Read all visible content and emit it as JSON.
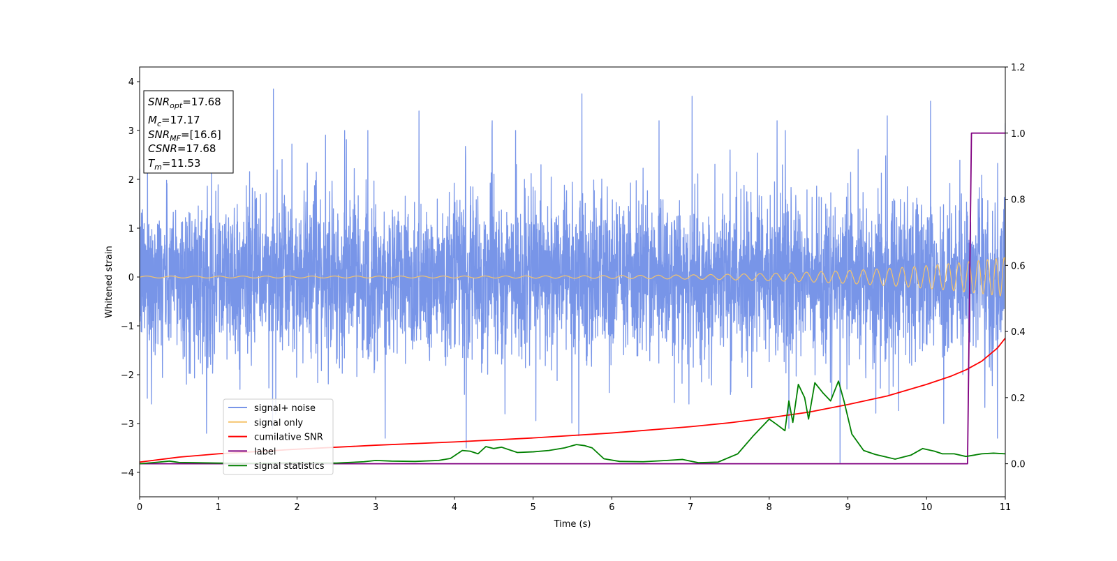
{
  "chart_data": {
    "type": "line",
    "xlabel": "Time (s)",
    "ylabel": "Whitened strain",
    "xlim": [
      0,
      11
    ],
    "ylim": [
      -4.5,
      4.3
    ],
    "y2lim": [
      -0.1,
      1.2
    ],
    "x_ticks": [
      0,
      1,
      2,
      3,
      4,
      5,
      6,
      7,
      8,
      9,
      10,
      11
    ],
    "y_ticks": [
      -4,
      -3,
      -2,
      -1,
      0,
      1,
      2,
      3,
      4
    ],
    "y2_ticks": [
      0.0,
      0.2,
      0.4,
      0.6,
      0.8,
      1.0,
      1.2
    ],
    "x_tick_labels": [
      "0",
      "1",
      "2",
      "3",
      "4",
      "5",
      "6",
      "7",
      "8",
      "9",
      "10",
      "11"
    ],
    "y_tick_labels": [
      "−4",
      "−3",
      "−2",
      "−1",
      "0",
      "1",
      "2",
      "3",
      "4"
    ],
    "y2_tick_labels": [
      "0.0",
      "0.2",
      "0.4",
      "0.6",
      "0.8",
      "1.0",
      "1.2"
    ],
    "grid": false,
    "legend_position": "lower-left",
    "annotation": {
      "lines": [
        {
          "base": "SNR",
          "sub": "opt",
          "value": "=17.68"
        },
        {
          "base": "M",
          "sub": "c",
          "value": "=17.17"
        },
        {
          "base": "SNR",
          "sub": "MF",
          "value": "=[16.6]"
        },
        {
          "base": "CSNR",
          "sub": "",
          "value": "=17.68"
        },
        {
          "base": "T",
          "sub": "m",
          "value": "=11.53"
        }
      ]
    },
    "series": [
      {
        "name": "signal+ noise",
        "color": "#7895e8",
        "axis": "left",
        "kind": "noise",
        "std": 0.8,
        "extremes": [
          [
            1.7,
            3.85
          ],
          [
            1.69,
            -3.1
          ],
          [
            5.62,
            3.75
          ],
          [
            5.58,
            -3.25
          ],
          [
            7.02,
            3.7
          ],
          [
            6.98,
            -2.6
          ],
          [
            3.55,
            3.4
          ],
          [
            3.12,
            -3.3
          ],
          [
            4.15,
            -3.5
          ],
          [
            10.05,
            3.6
          ],
          [
            8.9,
            -3.8
          ],
          [
            11.0,
            3.15
          ],
          [
            0.85,
            -3.2
          ],
          [
            0.1,
            2.9
          ],
          [
            0.15,
            -2.6
          ],
          [
            4.48,
            3.2
          ],
          [
            8.1,
            3.2
          ],
          [
            10.9,
            -3.3
          ],
          [
            2.9,
            3.0
          ],
          [
            6.6,
            3.2
          ],
          [
            8.25,
            -3.1
          ],
          [
            9.5,
            3.3
          ]
        ]
      },
      {
        "name": "signal only",
        "color": "#f5c46b",
        "axis": "left",
        "kind": "chirp",
        "amp_start": 0.02,
        "amp_end": 0.4,
        "tc": 11.53
      },
      {
        "name": "cumilative SNR",
        "color": "#ff0000",
        "axis": "right",
        "x": [
          0,
          0.5,
          1,
          2,
          3,
          4,
          5,
          6,
          7,
          7.5,
          8,
          8.5,
          9,
          9.5,
          10,
          10.3,
          10.5,
          10.7,
          10.9,
          11
        ],
        "y": [
          0.005,
          0.02,
          0.03,
          0.044,
          0.056,
          0.066,
          0.078,
          0.093,
          0.112,
          0.124,
          0.139,
          0.156,
          0.179,
          0.205,
          0.24,
          0.264,
          0.284,
          0.31,
          0.35,
          0.38
        ]
      },
      {
        "name": "label",
        "color": "#800080",
        "axis": "right",
        "x": [
          0,
          10.52,
          10.57,
          11
        ],
        "y": [
          0,
          0,
          1,
          1
        ]
      },
      {
        "name": "signal statistics",
        "color": "#008000",
        "axis": "right",
        "x": [
          0,
          0.2,
          0.38,
          0.5,
          1.0,
          1.5,
          2.0,
          2.5,
          2.85,
          3.0,
          3.2,
          3.5,
          3.8,
          3.95,
          4.1,
          4.2,
          4.3,
          4.4,
          4.5,
          4.6,
          4.8,
          5.0,
          5.2,
          5.4,
          5.55,
          5.65,
          5.75,
          5.9,
          6.1,
          6.4,
          6.7,
          6.9,
          7.1,
          7.35,
          7.6,
          7.8,
          8.0,
          8.1,
          8.2,
          8.25,
          8.3,
          8.37,
          8.45,
          8.5,
          8.58,
          8.68,
          8.78,
          8.88,
          8.95,
          9.05,
          9.2,
          9.35,
          9.6,
          9.8,
          9.95,
          10.1,
          10.2,
          10.35,
          10.5,
          10.7,
          10.85,
          11.0
        ],
        "y": [
          0.0,
          0.004,
          0.008,
          0.004,
          0.002,
          0.001,
          0.003,
          0.002,
          0.006,
          0.01,
          0.008,
          0.007,
          0.01,
          0.016,
          0.04,
          0.038,
          0.03,
          0.052,
          0.046,
          0.05,
          0.034,
          0.036,
          0.04,
          0.048,
          0.058,
          0.055,
          0.048,
          0.015,
          0.007,
          0.006,
          0.01,
          0.013,
          0.003,
          0.005,
          0.03,
          0.085,
          0.135,
          0.118,
          0.1,
          0.19,
          0.125,
          0.24,
          0.2,
          0.135,
          0.245,
          0.215,
          0.19,
          0.25,
          0.19,
          0.09,
          0.04,
          0.028,
          0.014,
          0.026,
          0.046,
          0.038,
          0.03,
          0.03,
          0.022,
          0.03,
          0.032,
          0.03
        ]
      }
    ]
  }
}
